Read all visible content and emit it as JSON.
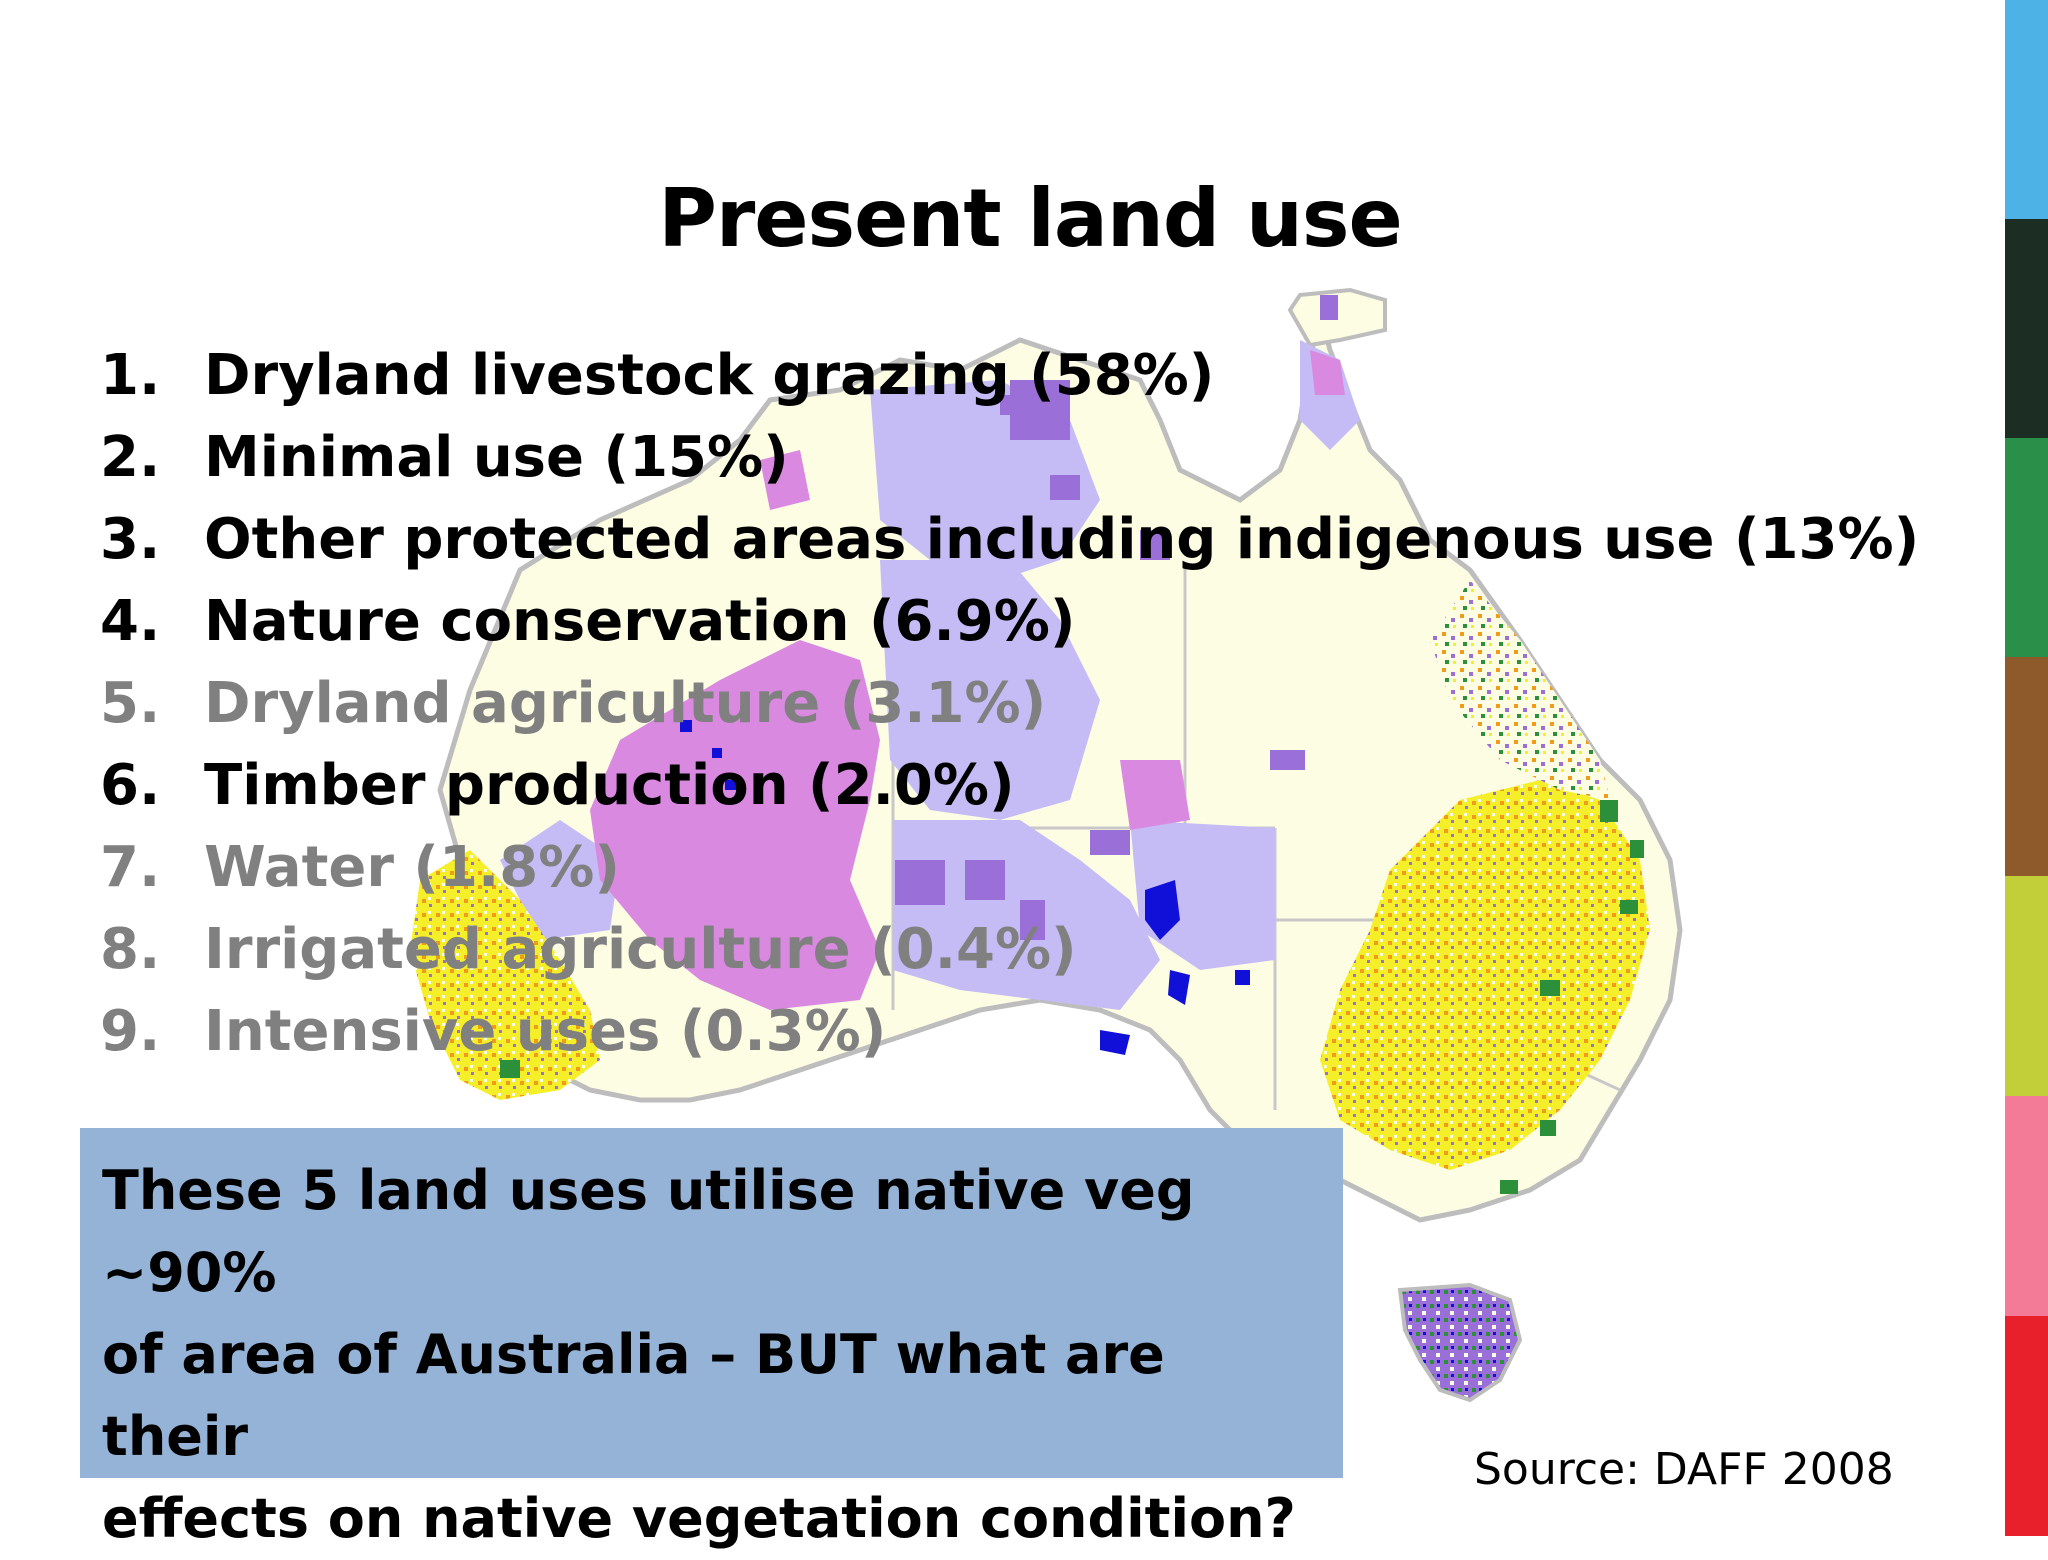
{
  "title": "Present land use",
  "land_uses": [
    {
      "number": "1.",
      "label": "Dryland livestock grazing (58%)",
      "emphasis": "dark"
    },
    {
      "number": "2.",
      "label": "Minimal use (15%)",
      "emphasis": "dark"
    },
    {
      "number": "3.",
      "label": "Other protected areas including indigenous use  (13%)",
      "emphasis": "dark"
    },
    {
      "number": "4.",
      "label": "Nature conservation (6.9%)",
      "emphasis": "dark"
    },
    {
      "number": "5.",
      "label": "Dryland agriculture (3.1%)",
      "emphasis": "gray"
    },
    {
      "number": "6.",
      "label": "Timber production (2.0%)",
      "emphasis": "dark"
    },
    {
      "number": "7.",
      "label": "Water (1.8%)",
      "emphasis": "gray"
    },
    {
      "number": "8.",
      "label": "Irrigated agriculture (0.4%)",
      "emphasis": "gray"
    },
    {
      "number": "9.",
      "label": "Intensive uses (0.3%)",
      "emphasis": "gray"
    }
  ],
  "callout": {
    "line1": "These 5 land uses utilise native veg ~90%",
    "line2": "of area of Australia – BUT what are their",
    "line3": "effects on native vegetation condition?"
  },
  "source": "Source: DAFF 2008",
  "colors": {
    "callout_bg": "#95b3d7",
    "map_base": "#fdfde3",
    "grazing_lavender": "#c5bcf5",
    "indigenous_pink": "#d98ae0",
    "conservation_purple": "#9b6fd8",
    "water_blue": "#1010d8",
    "agriculture_yellow": "#f5ef2a",
    "irrigated_orange": "#f29a1a",
    "timber_green": "#2c8f3a",
    "sidebar": [
      "#4db3e6",
      "#1c2e23",
      "#2a9049",
      "#8e5a2c",
      "#c3cf38",
      "#f37b97",
      "#e8202b"
    ]
  }
}
